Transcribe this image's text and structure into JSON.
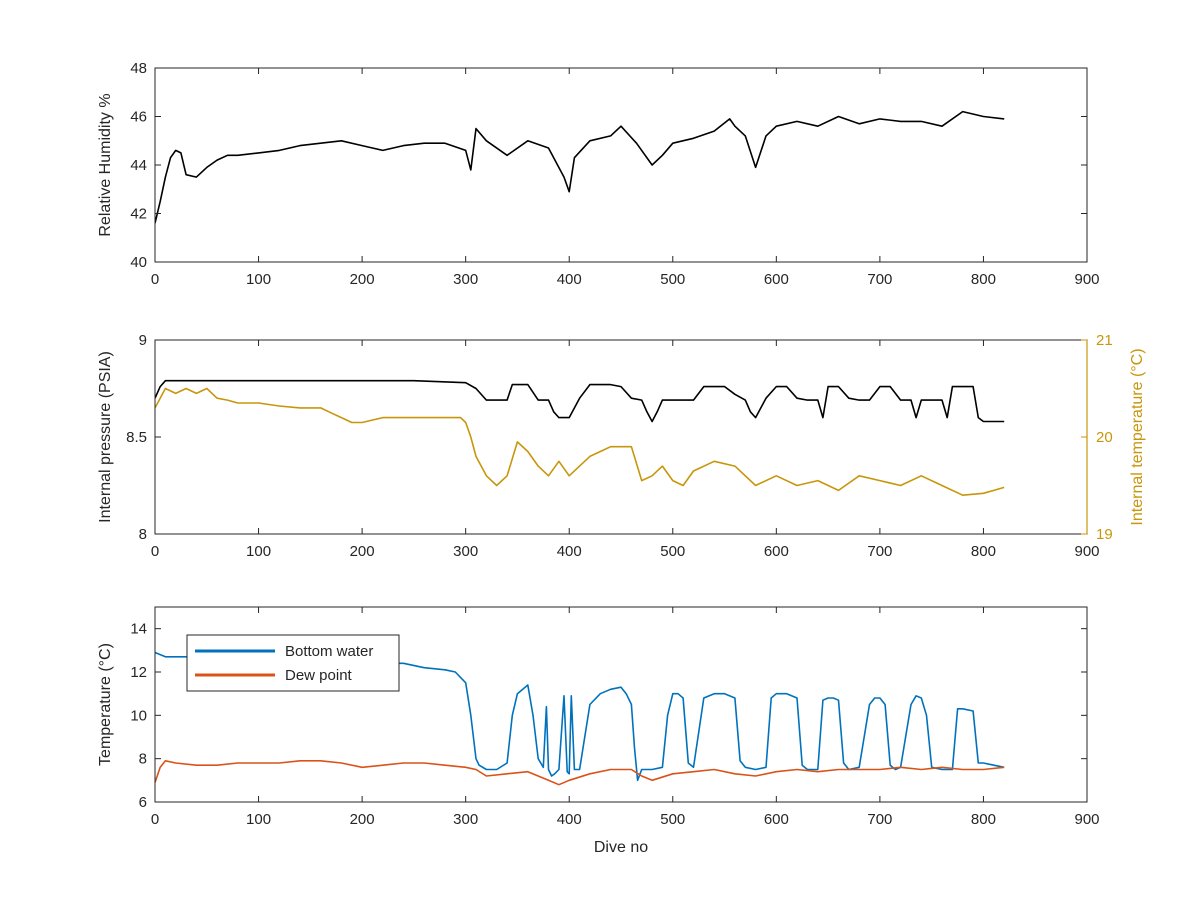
{
  "chart_data": [
    {
      "type": "line",
      "xlabel": "",
      "ylabel": "Relative Humidity %",
      "xlim": [
        0,
        900
      ],
      "ylim": [
        40,
        48
      ],
      "xticks": [
        0,
        100,
        200,
        300,
        400,
        500,
        600,
        700,
        800,
        900
      ],
      "yticks": [
        40,
        42,
        44,
        46,
        48
      ],
      "series": [
        {
          "color": "#000000",
          "axis": "left",
          "x": [
            0,
            5,
            10,
            15,
            20,
            25,
            30,
            40,
            50,
            60,
            70,
            80,
            100,
            120,
            140,
            160,
            180,
            200,
            220,
            240,
            260,
            280,
            300,
            305,
            310,
            320,
            340,
            360,
            380,
            395,
            400,
            405,
            420,
            440,
            450,
            465,
            480,
            490,
            500,
            520,
            540,
            555,
            560,
            570,
            580,
            590,
            600,
            620,
            640,
            660,
            680,
            700,
            720,
            740,
            760,
            780,
            800,
            820
          ],
          "y": [
            41.6,
            42.5,
            43.5,
            44.3,
            44.6,
            44.5,
            43.6,
            43.5,
            43.9,
            44.2,
            44.4,
            44.4,
            44.5,
            44.6,
            44.8,
            44.9,
            45.0,
            44.8,
            44.6,
            44.8,
            44.9,
            44.9,
            44.6,
            43.8,
            45.5,
            45.0,
            44.4,
            45.0,
            44.7,
            43.5,
            42.9,
            44.3,
            45.0,
            45.2,
            45.6,
            44.9,
            44.0,
            44.4,
            44.9,
            45.1,
            45.4,
            45.9,
            45.6,
            45.2,
            43.9,
            45.2,
            45.6,
            45.8,
            45.6,
            46.0,
            45.7,
            45.9,
            45.8,
            45.8,
            45.6,
            46.2,
            46.0,
            45.9
          ]
        }
      ]
    },
    {
      "type": "line",
      "xlabel": "",
      "ylabel": "Internal pressure (PSIA)",
      "ylabel_right": "Internal temperature (°C)",
      "xlim": [
        0,
        900
      ],
      "ylim": [
        8,
        9
      ],
      "ylim_right": [
        19,
        21
      ],
      "xticks": [
        0,
        100,
        200,
        300,
        400,
        500,
        600,
        700,
        800,
        900
      ],
      "yticks": [
        8,
        8.5,
        9
      ],
      "yticks_right": [
        19,
        20,
        21
      ],
      "right_axis_color": "#c8960c",
      "series": [
        {
          "color": "#000000",
          "axis": "left",
          "x": [
            0,
            5,
            10,
            50,
            100,
            150,
            200,
            250,
            300,
            310,
            320,
            340,
            345,
            360,
            370,
            380,
            385,
            390,
            400,
            410,
            420,
            430,
            440,
            450,
            460,
            470,
            475,
            480,
            485,
            490,
            520,
            530,
            540,
            550,
            560,
            570,
            575,
            580,
            590,
            600,
            610,
            620,
            630,
            640,
            645,
            650,
            660,
            670,
            680,
            690,
            700,
            710,
            720,
            730,
            735,
            740,
            750,
            760,
            765,
            770,
            780,
            790,
            795,
            800,
            820
          ],
          "y": [
            8.7,
            8.76,
            8.79,
            8.79,
            8.79,
            8.79,
            8.79,
            8.79,
            8.78,
            8.75,
            8.69,
            8.69,
            8.77,
            8.77,
            8.69,
            8.69,
            8.63,
            8.6,
            8.6,
            8.7,
            8.77,
            8.77,
            8.77,
            8.76,
            8.7,
            8.69,
            8.63,
            8.58,
            8.63,
            8.69,
            8.69,
            8.76,
            8.76,
            8.76,
            8.72,
            8.69,
            8.63,
            8.6,
            8.7,
            8.76,
            8.76,
            8.7,
            8.69,
            8.69,
            8.6,
            8.76,
            8.76,
            8.7,
            8.69,
            8.69,
            8.76,
            8.76,
            8.69,
            8.69,
            8.6,
            8.69,
            8.69,
            8.69,
            8.6,
            8.76,
            8.76,
            8.76,
            8.6,
            8.58,
            8.58
          ]
        },
        {
          "color": "#c8960c",
          "axis": "right",
          "x": [
            0,
            10,
            20,
            30,
            40,
            50,
            60,
            70,
            80,
            100,
            120,
            140,
            160,
            170,
            180,
            190,
            200,
            220,
            240,
            260,
            280,
            295,
            300,
            305,
            310,
            320,
            330,
            340,
            350,
            360,
            370,
            380,
            390,
            400,
            410,
            420,
            430,
            440,
            450,
            460,
            470,
            480,
            490,
            500,
            510,
            520,
            540,
            560,
            580,
            600,
            620,
            640,
            660,
            680,
            700,
            720,
            740,
            760,
            780,
            800,
            810,
            820
          ],
          "y": [
            20.3,
            20.5,
            20.45,
            20.5,
            20.45,
            20.5,
            20.4,
            20.38,
            20.35,
            20.35,
            20.32,
            20.3,
            20.3,
            20.25,
            20.2,
            20.15,
            20.15,
            20.2,
            20.2,
            20.2,
            20.2,
            20.2,
            20.15,
            20.0,
            19.8,
            19.6,
            19.5,
            19.6,
            19.95,
            19.85,
            19.7,
            19.6,
            19.75,
            19.6,
            19.7,
            19.8,
            19.85,
            19.9,
            19.9,
            19.9,
            19.55,
            19.6,
            19.7,
            19.55,
            19.5,
            19.65,
            19.75,
            19.7,
            19.5,
            19.6,
            19.5,
            19.55,
            19.45,
            19.6,
            19.55,
            19.5,
            19.6,
            19.5,
            19.4,
            19.42,
            19.45,
            19.48
          ]
        }
      ]
    },
    {
      "type": "line",
      "xlabel": "Dive no",
      "ylabel": "Temperature (°C)",
      "xlim": [
        0,
        900
      ],
      "ylim": [
        6,
        15
      ],
      "xticks": [
        0,
        100,
        200,
        300,
        400,
        500,
        600,
        700,
        800,
        900
      ],
      "yticks": [
        6,
        8,
        10,
        12,
        14
      ],
      "legend": "top-left",
      "series": [
        {
          "name": "Bottom water",
          "color": "#0072bd",
          "x": [
            0,
            10,
            20,
            40,
            60,
            80,
            100,
            120,
            140,
            160,
            180,
            200,
            220,
            240,
            260,
            280,
            290,
            300,
            305,
            310,
            313,
            320,
            330,
            340,
            345,
            350,
            360,
            365,
            370,
            375,
            378,
            380,
            383,
            386,
            390,
            395,
            398,
            400,
            402,
            405,
            410,
            420,
            430,
            440,
            450,
            455,
            460,
            463,
            466,
            470,
            480,
            490,
            495,
            500,
            505,
            510,
            515,
            520,
            530,
            540,
            550,
            560,
            565,
            570,
            580,
            590,
            595,
            600,
            610,
            620,
            625,
            630,
            640,
            645,
            650,
            655,
            660,
            665,
            670,
            680,
            690,
            695,
            700,
            705,
            710,
            715,
            720,
            730,
            735,
            740,
            745,
            750,
            760,
            770,
            775,
            780,
            790,
            795,
            800,
            810,
            820
          ],
          "y": [
            12.9,
            12.7,
            12.7,
            12.7,
            12.6,
            12.6,
            12.6,
            12.5,
            12.5,
            12.5,
            12.4,
            12.4,
            12.4,
            12.4,
            12.2,
            12.1,
            12.0,
            11.5,
            10.0,
            8.0,
            7.7,
            7.5,
            7.5,
            7.8,
            10.0,
            11.0,
            11.4,
            10.0,
            8.0,
            7.6,
            10.4,
            7.5,
            7.2,
            7.3,
            7.5,
            10.9,
            7.4,
            7.3,
            10.9,
            7.5,
            7.5,
            10.5,
            11.0,
            11.2,
            11.3,
            11.0,
            10.5,
            8.5,
            7.0,
            7.5,
            7.5,
            7.6,
            10.0,
            11.0,
            11.0,
            10.8,
            7.8,
            7.6,
            10.8,
            11.0,
            11.0,
            10.8,
            7.9,
            7.6,
            7.5,
            7.6,
            10.8,
            11.0,
            11.0,
            10.8,
            7.7,
            7.5,
            7.5,
            10.7,
            10.8,
            10.8,
            10.7,
            7.8,
            7.5,
            7.6,
            10.5,
            10.8,
            10.8,
            10.5,
            7.7,
            7.5,
            7.6,
            10.5,
            10.9,
            10.8,
            10.0,
            7.6,
            7.5,
            7.5,
            10.3,
            10.3,
            10.2,
            7.8,
            7.8,
            7.7,
            7.6
          ]
        },
        {
          "name": "Dew point",
          "color": "#d95319",
          "x": [
            0,
            5,
            10,
            20,
            40,
            60,
            80,
            100,
            120,
            140,
            160,
            180,
            200,
            220,
            240,
            260,
            280,
            300,
            310,
            320,
            340,
            360,
            380,
            390,
            400,
            420,
            440,
            460,
            470,
            480,
            500,
            520,
            540,
            560,
            580,
            600,
            620,
            640,
            660,
            680,
            700,
            720,
            740,
            760,
            780,
            800,
            820
          ],
          "y": [
            6.9,
            7.6,
            7.9,
            7.8,
            7.7,
            7.7,
            7.8,
            7.8,
            7.8,
            7.9,
            7.9,
            7.8,
            7.6,
            7.7,
            7.8,
            7.8,
            7.7,
            7.6,
            7.5,
            7.2,
            7.3,
            7.4,
            7.0,
            6.8,
            7.0,
            7.3,
            7.5,
            7.5,
            7.2,
            7.0,
            7.3,
            7.4,
            7.5,
            7.3,
            7.2,
            7.4,
            7.5,
            7.4,
            7.5,
            7.5,
            7.5,
            7.6,
            7.5,
            7.6,
            7.5,
            7.5,
            7.6
          ]
        }
      ]
    }
  ]
}
